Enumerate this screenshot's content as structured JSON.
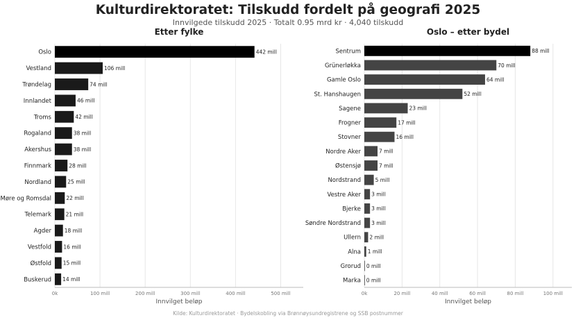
{
  "title": "Kulturdirektoratet: Tilskudd fordelt på geografi 2025",
  "subtitle": "Innvilgede tilskudd 2025 · Totalt 0.95 mrd kr · 4,040 tilskudd",
  "source": "Kilde: Kulturdirektoratet · Bydelskobling via Brønnøysundregistrene og SSB postnummer",
  "chart_data": [
    {
      "type": "bar",
      "orientation": "horizontal",
      "title": "Etter fylke",
      "xlabel": "Innvilget beløp",
      "xlim": [
        0,
        550
      ],
      "xticks": [
        0,
        100,
        200,
        300,
        400,
        500
      ],
      "xtick_labels": [
        "0k",
        "100 mill",
        "200 mill",
        "300 mill",
        "400 mill",
        "500 mill"
      ],
      "grid": true,
      "categories": [
        "Oslo",
        "Vestland",
        "Trøndelag",
        "Innlandet",
        "Troms",
        "Rogaland",
        "Akershus",
        "Finnmark",
        "Nordland",
        "Møre og Romsdal",
        "Telemark",
        "Agder",
        "Vestfold",
        "Østfold",
        "Buskerud"
      ],
      "values": [
        442,
        106,
        74,
        46,
        42,
        38,
        38,
        28,
        25,
        22,
        21,
        18,
        16,
        15,
        14
      ],
      "value_labels": [
        "442 mill",
        "106 mill",
        "74 mill",
        "46 mill",
        "42 mill",
        "38 mill",
        "38 mill",
        "28 mill",
        "25 mill",
        "22 mill",
        "21 mill",
        "18 mill",
        "16 mill",
        "15 mill",
        "14 mill"
      ],
      "colors": [
        "#000000",
        "#1a1a1a",
        "#1a1a1a",
        "#1a1a1a",
        "#1a1a1a",
        "#1a1a1a",
        "#1a1a1a",
        "#1a1a1a",
        "#1a1a1a",
        "#1a1a1a",
        "#1a1a1a",
        "#1a1a1a",
        "#1a1a1a",
        "#1a1a1a",
        "#1a1a1a"
      ]
    },
    {
      "type": "bar",
      "orientation": "horizontal",
      "title": "Oslo – etter bydel",
      "xlabel": "Innvilget beløp",
      "xlim": [
        0,
        110
      ],
      "xticks": [
        0,
        20,
        40,
        60,
        80,
        100
      ],
      "xtick_labels": [
        "0k",
        "20 mill",
        "40 mill",
        "60 mill",
        "80 mill",
        "100 mill"
      ],
      "grid": true,
      "categories": [
        "Sentrum",
        "Grünerløkka",
        "Gamle Oslo",
        "St. Hanshaugen",
        "Sagene",
        "Frogner",
        "Stovner",
        "Nordre Aker",
        "Østensjø",
        "Nordstrand",
        "Vestre Aker",
        "Bjerke",
        "Søndre Nordstrand",
        "Ullern",
        "Alna",
        "Grorud",
        "Marka"
      ],
      "values": [
        88,
        70,
        64,
        52,
        23,
        17,
        16,
        7,
        7,
        5,
        3,
        3,
        3,
        2,
        1,
        0.3,
        0.1
      ],
      "value_labels": [
        "88 mill",
        "70 mill",
        "64 mill",
        "52 mill",
        "23 mill",
        "17 mill",
        "16 mill",
        "7 mill",
        "7 mill",
        "5 mill",
        "3 mill",
        "3 mill",
        "3 mill",
        "2 mill",
        "1 mill",
        "0 mill",
        "0 mill"
      ],
      "colors": [
        "#000000",
        "#444444",
        "#444444",
        "#444444",
        "#444444",
        "#444444",
        "#444444",
        "#444444",
        "#444444",
        "#444444",
        "#444444",
        "#444444",
        "#444444",
        "#444444",
        "#444444",
        "#444444",
        "#444444"
      ]
    }
  ]
}
